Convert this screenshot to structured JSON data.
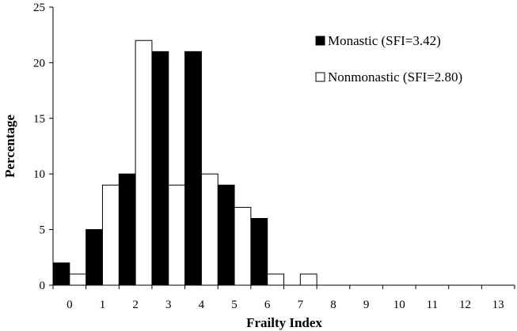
{
  "chart_data": {
    "type": "bar",
    "title": "",
    "xlabel": "Frailty Index",
    "ylabel": "Percentage",
    "categories": [
      "0",
      "1",
      "2",
      "3",
      "4",
      "5",
      "6",
      "7",
      "8",
      "9",
      "10",
      "11",
      "12",
      "13"
    ],
    "yticks": [
      "0",
      "5",
      "10",
      "15",
      "20",
      "25"
    ],
    "ylim": [
      0,
      25
    ],
    "grid": false,
    "legend_position": "top-right",
    "series": [
      {
        "name": "Monastic (SFI=3.42)",
        "color": "#000000",
        "values": [
          2,
          5,
          10,
          21,
          21,
          9,
          6,
          0,
          0,
          0,
          0,
          0,
          0,
          0
        ]
      },
      {
        "name": "Nonmonastic (SFI=2.80)",
        "color": "#ffffff",
        "values": [
          1,
          9,
          22,
          9,
          10,
          7,
          1,
          1,
          0,
          0,
          0,
          0,
          0,
          0
        ]
      }
    ]
  }
}
